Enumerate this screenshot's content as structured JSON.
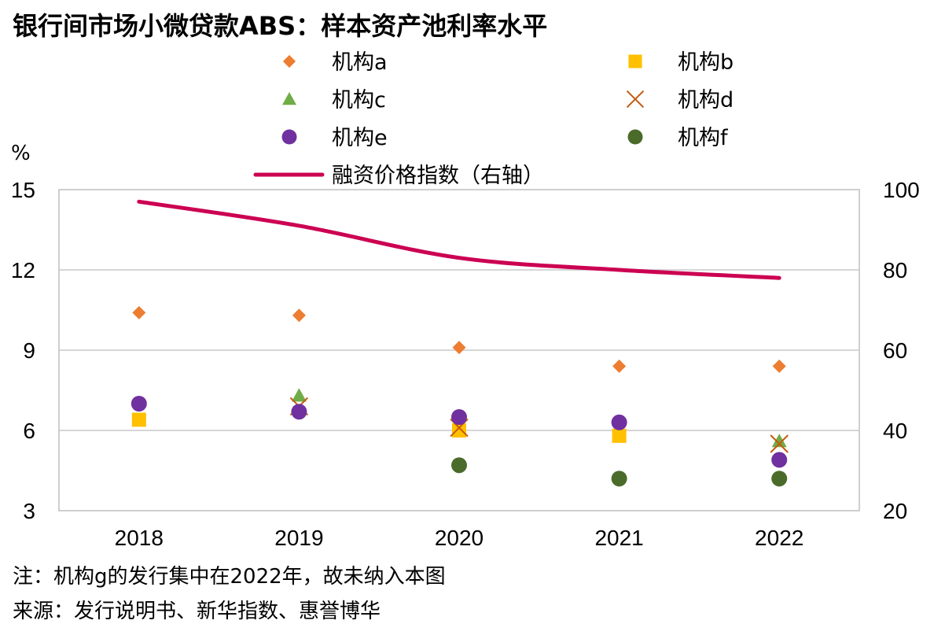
{
  "title": "银行间市场小微贷款ABS：样本资产池利率水平",
  "notes": {
    "note": "注：机构g的发行集中在2022年，故未纳入本图",
    "source": "来源：发行说明书、新华指数、惠誉博华"
  },
  "chart_data": {
    "type": "scatter",
    "title": "银行间市场小微贷款ABS：样本资产池利率水平",
    "categories": [
      "2018",
      "2019",
      "2020",
      "2021",
      "2022"
    ],
    "y_left": {
      "unit": "%",
      "ylim": [
        3,
        15
      ],
      "ticks": [
        "15",
        "12",
        "9",
        "6",
        "3"
      ]
    },
    "y_right": {
      "ylim": [
        20,
        100
      ],
      "ticks": [
        "100",
        "80",
        "60",
        "40",
        "20"
      ]
    },
    "grid": true,
    "legend_position": "top",
    "series": [
      {
        "name": "机构a",
        "marker": "diamond",
        "color": "#ED7D31",
        "axis": "left",
        "values": [
          10.4,
          10.3,
          9.1,
          8.4,
          8.4
        ]
      },
      {
        "name": "机构b",
        "marker": "square",
        "color": "#FFC000",
        "axis": "left",
        "values": [
          6.4,
          null,
          6.0,
          5.8,
          null
        ]
      },
      {
        "name": "机构c",
        "marker": "triangle",
        "color": "#70AD47",
        "axis": "left",
        "values": [
          null,
          7.3,
          null,
          null,
          5.6
        ]
      },
      {
        "name": "机构d",
        "marker": "x",
        "color": "#C55A11",
        "axis": "left",
        "values": [
          null,
          6.9,
          6.1,
          null,
          5.5
        ]
      },
      {
        "name": "机构e",
        "marker": "circle",
        "color": "#7030A0",
        "axis": "left",
        "values": [
          7.0,
          6.7,
          6.5,
          6.3,
          4.9
        ]
      },
      {
        "name": "机构f",
        "marker": "circle",
        "color": "#4B6B2B",
        "axis": "left",
        "values": [
          null,
          null,
          4.7,
          4.2,
          4.2
        ]
      },
      {
        "name": "融资价格指数（右轴）",
        "marker": "line",
        "color": "#CC0052",
        "axis": "right",
        "values": [
          97,
          91,
          83,
          80,
          78
        ]
      }
    ]
  }
}
